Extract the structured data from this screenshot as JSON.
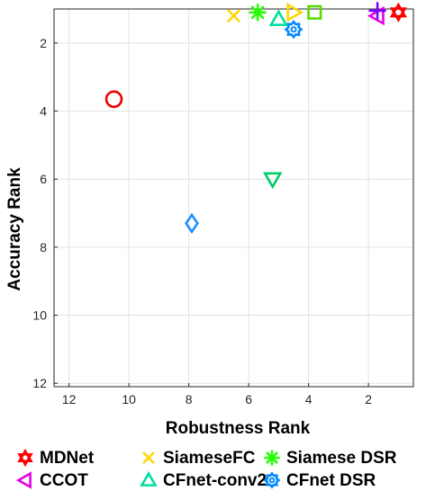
{
  "chart_data": {
    "type": "scatter",
    "title": "",
    "xlabel": "Robustness Rank",
    "ylabel": "Accuracy Rank",
    "x_reversed": true,
    "y_reversed": true,
    "xlim": [
      12.5,
      0.5
    ],
    "ylim": [
      1,
      12
    ],
    "xticks": [
      12,
      10,
      8,
      6,
      4,
      2
    ],
    "yticks": [
      2,
      4,
      6,
      8,
      10,
      12
    ],
    "grid": true,
    "legend_position": "bottom",
    "series": [
      {
        "name": "MDNet",
        "x": 1.0,
        "y": 1.1,
        "marker": "hexagram",
        "color": "#ff0000",
        "legend": true
      },
      {
        "name": "SiameseFC",
        "x": 6.5,
        "y": 1.2,
        "marker": "x",
        "color": "#ffd700",
        "legend": true
      },
      {
        "name": "Siamese DSR",
        "x": 5.7,
        "y": 1.1,
        "marker": "asterisk",
        "color": "#22ff00",
        "legend": true
      },
      {
        "name": "CCOT",
        "x": 1.7,
        "y": 1.2,
        "marker": "triangle-left",
        "color": "#e600e6",
        "legend": true
      },
      {
        "name": "CFnet-conv2",
        "x": 5.0,
        "y": 1.3,
        "marker": "triangle-up",
        "color": "#00e0a0",
        "legend": true
      },
      {
        "name": "CFnet DSR",
        "x": 4.5,
        "y": 1.6,
        "marker": "gear",
        "color": "#0088ff",
        "legend": true
      },
      {
        "name": "",
        "x": 10.5,
        "y": 3.65,
        "marker": "circle",
        "color": "#ee0000",
        "legend": false
      },
      {
        "name": "",
        "x": 5.2,
        "y": 6.0,
        "marker": "triangle-down",
        "color": "#00cc66",
        "legend": false
      },
      {
        "name": "",
        "x": 7.9,
        "y": 7.3,
        "marker": "diamond",
        "color": "#1e90ff",
        "legend": false
      },
      {
        "name": "",
        "x": 4.5,
        "y": 1.1,
        "marker": "triangle-right",
        "color": "#ffd700",
        "legend": false
      },
      {
        "name": "",
        "x": 3.8,
        "y": 1.1,
        "marker": "square",
        "color": "#55dd00",
        "legend": false
      },
      {
        "name": "",
        "x": 1.7,
        "y": 1.05,
        "marker": "plus",
        "color": "#7a00ff",
        "legend": false
      }
    ]
  }
}
